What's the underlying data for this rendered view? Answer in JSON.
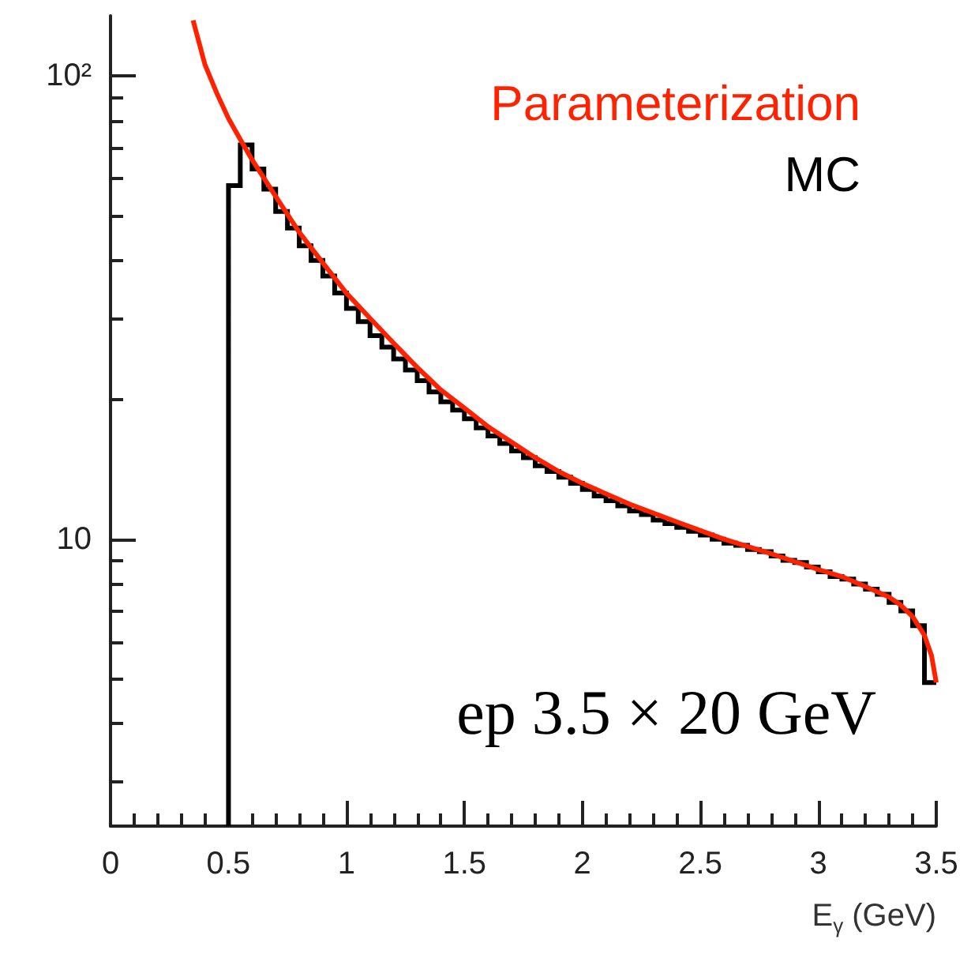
{
  "chart_data": {
    "type": "histogram",
    "xlabel": "E$_{γ}$ (GeV)",
    "annotations": [
      "ep 3.5 × 20 GeV"
    ],
    "xlim": [
      0,
      3.5
    ],
    "xticks": [
      0,
      0.5,
      1,
      1.5,
      2,
      2.5,
      3,
      3.5
    ],
    "ylim": [
      2.4,
      135
    ],
    "yticks": [
      {
        "value": 10,
        "label": "10"
      },
      {
        "value": 100,
        "label": "10²"
      }
    ],
    "log": "y",
    "grid": false,
    "legend": "top right",
    "series": [
      {
        "name": "Parameterization",
        "type": "line",
        "color": "#ff2200",
        "x": [
          0.35,
          0.4,
          0.45,
          0.5,
          0.55,
          0.6,
          0.7,
          0.8,
          0.9,
          1.0,
          1.1,
          1.2,
          1.3,
          1.4,
          1.5,
          1.6,
          1.7,
          1.8,
          1.9,
          2.0,
          2.2,
          2.4,
          2.6,
          2.8,
          3.0,
          3.1,
          3.2,
          3.3,
          3.35,
          3.4,
          3.45,
          3.48,
          3.5
        ],
        "values": [
          132,
          106,
          92,
          81,
          73,
          66,
          55,
          46,
          39.5,
          34,
          30,
          26.5,
          23.5,
          21,
          19.2,
          17.5,
          16.2,
          15,
          14,
          13.2,
          11.9,
          10.9,
          10.0,
          9.3,
          8.6,
          8.3,
          7.9,
          7.5,
          7.2,
          6.8,
          6.2,
          5.6,
          4.9
        ]
      },
      {
        "name": "MC",
        "color": "#000000",
        "bins": [
          0.5,
          0.55,
          0.6,
          0.65,
          0.7,
          0.75,
          0.8,
          0.85,
          0.9,
          0.95,
          1.0,
          1.05,
          1.1,
          1.15,
          1.2,
          1.25,
          1.3,
          1.35,
          1.4,
          1.45,
          1.5,
          1.55,
          1.6,
          1.65,
          1.7,
          1.75,
          1.8,
          1.85,
          1.9,
          1.95,
          2.0,
          2.05,
          2.1,
          2.15,
          2.2,
          2.25,
          2.3,
          2.35,
          2.4,
          2.45,
          2.5,
          2.55,
          2.6,
          2.65,
          2.7,
          2.75,
          2.8,
          2.85,
          2.9,
          2.95,
          3.0,
          3.05,
          3.1,
          3.15,
          3.2,
          3.25,
          3.3,
          3.35,
          3.4,
          3.45,
          3.5
        ],
        "values": [
          58,
          71,
          63,
          57,
          51,
          47,
          43,
          40,
          37,
          34,
          31.5,
          29.5,
          27.5,
          26,
          24.5,
          23.2,
          22,
          20.8,
          19.8,
          19,
          18.2,
          17.4,
          16.7,
          16.1,
          15.5,
          15,
          14.4,
          14,
          13.6,
          13.2,
          12.8,
          12.4,
          12.1,
          11.8,
          11.5,
          11.3,
          11,
          10.8,
          10.6,
          10.4,
          10.2,
          10,
          9.8,
          9.7,
          9.5,
          9.4,
          9.2,
          9.0,
          8.9,
          8.7,
          8.5,
          8.3,
          8.2,
          8.0,
          7.8,
          7.6,
          7.3,
          7.0,
          6.5,
          4.9
        ]
      }
    ]
  }
}
